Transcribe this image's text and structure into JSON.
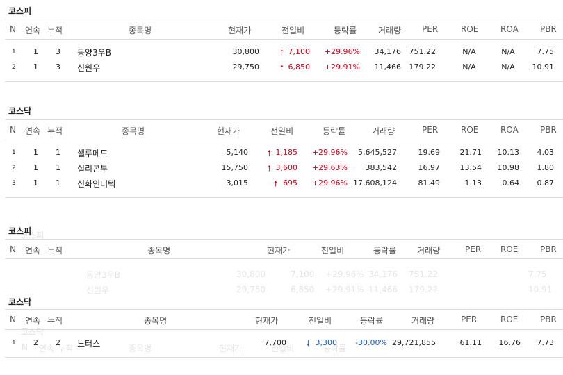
{
  "headers": {
    "n": "N",
    "streak": "연속",
    "cumulative": "누적",
    "name": "종목명",
    "price": "현재가",
    "change": "전일비",
    "rate": "등락률",
    "volume": "거래량",
    "per": "PER",
    "roe": "ROE",
    "roa": "ROA",
    "pbr": "PBR"
  },
  "top": {
    "kospi": {
      "title": "코스피",
      "rows": [
        {
          "n": "1",
          "streak": "1",
          "cumulative": "3",
          "name": "동양3우B",
          "price": "30,800",
          "change": "7,100",
          "rate": "+29.96%",
          "volume": "34,176",
          "per": "751.22",
          "roe": "N/A",
          "roa": "N/A",
          "pbr": "7.75"
        },
        {
          "n": "2",
          "streak": "1",
          "cumulative": "3",
          "name": "신원우",
          "price": "29,750",
          "change": "6,850",
          "rate": "+29.91%",
          "volume": "11,466",
          "per": "179.22",
          "roe": "N/A",
          "roa": "N/A",
          "pbr": "10.91"
        }
      ]
    },
    "kosdaq": {
      "title": "코스닥",
      "rows": [
        {
          "n": "1",
          "streak": "1",
          "cumulative": "1",
          "name": "셀루메드",
          "price": "5,140",
          "change": "1,185",
          "rate": "+29.96%",
          "volume": "5,645,527",
          "per": "19.69",
          "roe": "21.71",
          "roa": "10.13",
          "pbr": "4.03"
        },
        {
          "n": "2",
          "streak": "1",
          "cumulative": "1",
          "name": "실리콘투",
          "price": "15,750",
          "change": "3,600",
          "rate": "+29.63%",
          "volume": "383,542",
          "per": "16.97",
          "roe": "13.54",
          "roa": "10.98",
          "pbr": "1.80"
        },
        {
          "n": "3",
          "streak": "1",
          "cumulative": "1",
          "name": "신화인터텍",
          "price": "3,015",
          "change": "695",
          "rate": "+29.96%",
          "volume": "17,608,124",
          "per": "81.49",
          "roe": "1.13",
          "roa": "0.64",
          "pbr": "0.87"
        }
      ]
    }
  },
  "bottom": {
    "kospi": {
      "title": "코스피"
    },
    "kosdaq": {
      "title": "코스닥",
      "rows": [
        {
          "n": "1",
          "streak": "2",
          "cumulative": "2",
          "name": "노터스",
          "price": "7,700",
          "change": "3,300",
          "rate": "-30.00%",
          "volume": "29,721,855",
          "per": "61.11",
          "roe": "16.76",
          "roa": "",
          "pbr": "7.73"
        }
      ]
    }
  },
  "icons": {
    "up": "arrow-up-icon",
    "down": "arrow-down-icon"
  },
  "colors": {
    "up": "#d0021b",
    "down": "#1a5fd0"
  }
}
